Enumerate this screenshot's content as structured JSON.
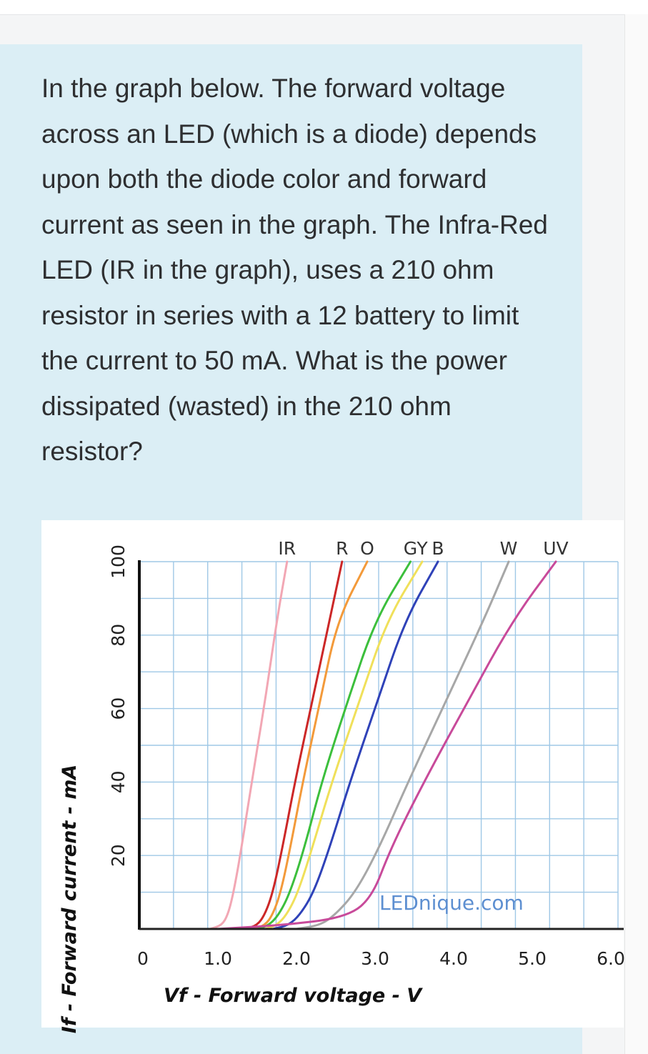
{
  "question": {
    "text": "In the graph below. The forward voltage across an LED (which is a diode) depends upon both the diode color and forward current as seen in the graph. The Infra-Red LED (IR in the graph), uses a 210 ohm resistor in series with a 12 battery to limit the current to 50 mA. What is the power dissipated (wasted) in the 210 ohm resistor?"
  },
  "chart_data": {
    "type": "line",
    "xlabel": "Vf - Forward voltage - V",
    "ylabel": "If - Forward current - mA",
    "xlim": [
      0,
      6.0
    ],
    "ylim": [
      0,
      100
    ],
    "x_ticks": [
      "0",
      "1.0",
      "2.0",
      "3.0",
      "4.0",
      "5.0",
      "6.0"
    ],
    "y_ticks": [
      "20",
      "40",
      "60",
      "80",
      "100"
    ],
    "grid": true,
    "watermark": "LEDnique.com",
    "series": [
      {
        "name": "IR",
        "color": "#f2a7b4",
        "x": [
          0.9,
          1.05,
          1.13,
          1.2,
          1.3,
          1.43,
          1.6,
          1.75,
          1.88
        ],
        "y": [
          0,
          1,
          4,
          10,
          22,
          40,
          62,
          84,
          100
        ]
      },
      {
        "name": "R",
        "color": "#cc2727",
        "x": [
          1.35,
          1.5,
          1.6,
          1.7,
          1.82,
          1.98,
          2.2,
          2.42,
          2.58
        ],
        "y": [
          0,
          1,
          4,
          10,
          22,
          40,
          62,
          84,
          100
        ]
      },
      {
        "name": "O",
        "color": "#f39a3a",
        "x": [
          1.45,
          1.6,
          1.7,
          1.8,
          1.92,
          2.08,
          2.3,
          2.52,
          2.9
        ],
        "y": [
          0,
          1,
          4,
          10,
          22,
          40,
          62,
          84,
          100
        ]
      },
      {
        "name": "G",
        "color": "#3cbf3c",
        "x": [
          1.5,
          1.65,
          1.78,
          1.92,
          2.1,
          2.32,
          2.65,
          3.0,
          3.45
        ],
        "y": [
          0,
          1,
          4,
          10,
          22,
          40,
          62,
          84,
          100
        ]
      },
      {
        "name": "Y",
        "color": "#f0e05a",
        "x": [
          1.6,
          1.75,
          1.88,
          2.02,
          2.2,
          2.45,
          2.8,
          3.15,
          3.6
        ],
        "y": [
          0,
          1,
          4,
          10,
          22,
          40,
          62,
          84,
          100
        ]
      },
      {
        "name": "B",
        "color": "#2f42b8",
        "x": [
          1.7,
          1.9,
          2.05,
          2.22,
          2.42,
          2.68,
          3.03,
          3.38,
          3.8
        ],
        "y": [
          0,
          1,
          4,
          10,
          22,
          40,
          62,
          84,
          100
        ]
      },
      {
        "name": "W",
        "color": "#a7a7a7",
        "x": [
          2.0,
          2.3,
          2.5,
          2.75,
          3.05,
          3.42,
          3.9,
          4.38,
          4.7
        ],
        "y": [
          0,
          1,
          4,
          10,
          22,
          40,
          62,
          84,
          100
        ]
      },
      {
        "name": "UV",
        "color": "#c84a9a",
        "x": [
          1.0,
          1.8,
          2.6,
          2.95,
          3.2,
          3.62,
          4.18,
          4.75,
          5.3
        ],
        "y": [
          0,
          1,
          3,
          8,
          22,
          40,
          62,
          84,
          100
        ]
      }
    ]
  }
}
